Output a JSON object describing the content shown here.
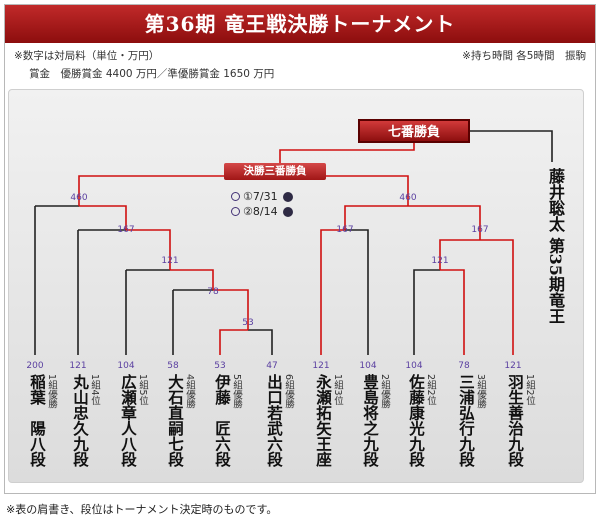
{
  "title": "第36期 竜王戦決勝トーナメント",
  "notes": {
    "left_line1": "※数字は対局料（単位・万円）",
    "left_line2": "賞金　優勝賞金 4400 万円／準優勝賞金 1650 万円",
    "right_line1": "※持ち時間 各5時間　振駒"
  },
  "final_match_label": "七番勝負",
  "playoff_label": "決勝三番勝負",
  "playoff_games": [
    {
      "label": "①7/31"
    },
    {
      "label": "②8/14"
    }
  ],
  "champion": "藤井聡太 第35期竜王",
  "players": [
    {
      "name": "稲葉　陽八段",
      "affiliation": "1組優勝",
      "fee": "200"
    },
    {
      "name": "丸山忠久九段",
      "affiliation": "1組4位",
      "fee": "121"
    },
    {
      "name": "広瀬章人八段",
      "affiliation": "1組5位",
      "fee": "104"
    },
    {
      "name": "大石直嗣七段",
      "affiliation": "4組優勝",
      "fee": "58"
    },
    {
      "name": "伊藤　匠六段",
      "affiliation": "5組優勝",
      "fee": "53"
    },
    {
      "name": "出口若武六段",
      "affiliation": "6組優勝",
      "fee": "47"
    },
    {
      "name": "永瀬拓矢王座",
      "affiliation": "1組3位",
      "fee": "121"
    },
    {
      "name": "豊島将之九段",
      "affiliation": "2組優勝",
      "fee": "104"
    },
    {
      "name": "佐藤康光九段",
      "affiliation": "2組2位",
      "fee": "104"
    },
    {
      "name": "三浦弘行九段",
      "affiliation": "3組優勝",
      "fee": "78"
    },
    {
      "name": "羽生善治九段",
      "affiliation": "1組2位",
      "fee": "121"
    }
  ],
  "round_fees": {
    "left_semi": "460",
    "right_semi": "460",
    "left_qf": "167",
    "right_qf_a": "167",
    "right_qf_b": "167",
    "left_r3": "121",
    "right_r2": "121",
    "left_r2": "78",
    "left_r1": "53"
  },
  "footnote": "※表の肩書き、段位はトーナメント決定時のものです。",
  "colors": {
    "winner_line": "#d01010",
    "loser_line": "#222222",
    "title_bg": "#a51717",
    "fee_text": "#5a3fa0"
  }
}
